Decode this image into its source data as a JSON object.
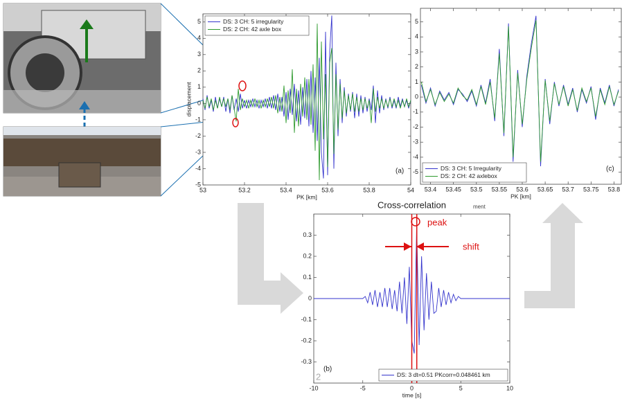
{
  "chart_data": [
    {
      "type": "line",
      "panel_label": "(a)",
      "xlabel": "PK [km]",
      "ylabel": "displacement",
      "legend": "upper left",
      "x": [
        53.0,
        53.01,
        53.02,
        53.03,
        53.04,
        53.05,
        53.06,
        53.07,
        53.08,
        53.09,
        53.1,
        53.11,
        53.12,
        53.13,
        53.14,
        53.15,
        53.16,
        53.17,
        53.18,
        53.19,
        53.2,
        53.21,
        53.22,
        53.23,
        53.24,
        53.25,
        53.26,
        53.27,
        53.28,
        53.29,
        53.3,
        53.31,
        53.32,
        53.33,
        53.34,
        53.35,
        53.36,
        53.37,
        53.38,
        53.39,
        53.4,
        53.41,
        53.42,
        53.43,
        53.44,
        53.45,
        53.46,
        53.47,
        53.48,
        53.49,
        53.5,
        53.51,
        53.52,
        53.53,
        53.54,
        53.55,
        53.56,
        53.57,
        53.58,
        53.59,
        53.6,
        53.61,
        53.62,
        53.63,
        53.64,
        53.65,
        53.66,
        53.67,
        53.68,
        53.69,
        53.7,
        53.71,
        53.72,
        53.73,
        53.74,
        53.75,
        53.76,
        53.77,
        53.78,
        53.79,
        53.8,
        53.81,
        53.82,
        53.83,
        53.84,
        53.85,
        53.86,
        53.87,
        53.88,
        53.89,
        53.9,
        53.91,
        53.92,
        53.93,
        53.94,
        53.95,
        53.96,
        53.97,
        53.98,
        53.99,
        54.0
      ],
      "xlim": [
        53,
        54
      ],
      "ylim": [
        -5,
        5.5
      ],
      "xticks": [
        53,
        53.2,
        53.4,
        53.6,
        53.8,
        54
      ],
      "yticks": [
        -5,
        -4,
        -3,
        -2,
        -1,
        0,
        1,
        2,
        3,
        4,
        5
      ],
      "series": [
        {
          "name": "DS: 3  CH: 5 irregularity",
          "color": "#3333cc",
          "values": [
            0.3,
            -0.4,
            0.5,
            -0.3,
            0.2,
            -0.5,
            0.4,
            -0.3,
            0.3,
            -0.2,
            0.4,
            -0.5,
            0.3,
            -0.6,
            0.5,
            -0.4,
            0.3,
            -0.5,
            0.6,
            -0.3,
            0.2,
            -0.3,
            0.2,
            -0.2,
            0.3,
            -0.2,
            0.2,
            -0.3,
            0.2,
            -0.2,
            0.3,
            -0.3,
            0.4,
            -0.3,
            0.5,
            -0.4,
            0.6,
            -0.5,
            0.4,
            -0.8,
            0.7,
            -1.0,
            0.9,
            -0.7,
            1.2,
            -1.1,
            0.8,
            -1.3,
            1.0,
            -0.9,
            1.5,
            -1.4,
            2.0,
            -1.8,
            1.6,
            -2.3,
            2.8,
            -3.0,
            -4.6,
            4.4,
            -4.4,
            3.2,
            5.4,
            -4.0,
            2.5,
            -2.0,
            1.5,
            -1.2,
            1.0,
            -0.8,
            0.6,
            -0.5,
            0.7,
            -0.9,
            0.6,
            -0.8,
            0.5,
            -0.6,
            0.4,
            -0.5,
            0.3,
            -0.4,
            1.1,
            -1.2,
            0.8,
            -0.6,
            0.5,
            -0.4,
            0.3,
            -0.3,
            0.4,
            -0.3,
            0.2,
            -0.3,
            0.4,
            -0.2,
            0.3,
            -0.2,
            0.2,
            -0.3,
            0.2
          ]
        },
        {
          "name": "DS: 2  CH: 42 axle box",
          "color": "#2e9a2e",
          "values": [
            0.2,
            -0.3,
            0.4,
            -0.2,
            0.3,
            -0.4,
            0.2,
            -0.3,
            0.4,
            -0.2,
            0.3,
            -0.2,
            0.3,
            -0.4,
            0.5,
            -0.3,
            -1.1,
            0.9,
            -0.4,
            0.3,
            -0.2,
            0.2,
            -0.3,
            0.2,
            -0.2,
            0.3,
            -0.2,
            0.2,
            -0.3,
            0.2,
            -0.2,
            0.3,
            -0.2,
            0.4,
            -0.3,
            0.5,
            -0.6,
            0.4,
            -0.5,
            1.1,
            -1.2,
            0.8,
            -0.6,
            2.1,
            -1.8,
            0.9,
            -1.4,
            1.2,
            -0.8,
            1.6,
            -1.0,
            1.5,
            -1.3,
            2.4,
            -2.9,
            4.9,
            -4.7,
            3.8,
            -2.2,
            1.8,
            -3.9,
            2.5,
            3.4,
            -3.1,
            1.8,
            -1.6,
            1.2,
            -0.9,
            0.8,
            -0.6,
            0.5,
            -0.4,
            0.6,
            -0.5,
            0.4,
            -0.5,
            0.3,
            -0.4,
            0.3,
            -0.3,
            0.2,
            -1.2,
            0.9,
            -0.5,
            0.4,
            -0.3,
            0.3,
            -0.3,
            0.2,
            -0.2,
            0.3,
            -0.2,
            0.3,
            -0.2,
            0.2,
            -0.3,
            0.2,
            -0.2,
            0.3,
            -0.2,
            0.2
          ]
        }
      ]
    },
    {
      "type": "line",
      "panel_label": "(c)",
      "xlabel": "PK [km]",
      "note": "ment",
      "legend": "lower left",
      "x": [
        53.38,
        53.39,
        53.4,
        53.41,
        53.42,
        53.43,
        53.44,
        53.45,
        53.46,
        53.47,
        53.48,
        53.49,
        53.5,
        53.51,
        53.52,
        53.53,
        53.54,
        53.55,
        53.56,
        53.57,
        53.58,
        53.59,
        53.6,
        53.61,
        53.62,
        53.63,
        53.64,
        53.65,
        53.66,
        53.67,
        53.68,
        53.69,
        53.7,
        53.71,
        53.72,
        53.73,
        53.74,
        53.75,
        53.76,
        53.77,
        53.78,
        53.79,
        53.8,
        53.81
      ],
      "xlim": [
        53.378,
        53.816
      ],
      "ylim": [
        -5.8,
        5.9
      ],
      "xticks": [
        53.4,
        53.45,
        53.5,
        53.55,
        53.6,
        53.65,
        53.7,
        53.75,
        53.8
      ],
      "yticks": [
        -5,
        -4,
        -3,
        -2,
        -1,
        0,
        1,
        2,
        3,
        4,
        5
      ],
      "series": [
        {
          "name": "DS: 3  CH: 5 Irregularity",
          "color": "#3333cc",
          "values": [
            0.8,
            -0.4,
            0.6,
            -0.6,
            0.4,
            -0.2,
            0.3,
            -0.5,
            0.5,
            0.2,
            -0.3,
            0.4,
            -0.6,
            0.8,
            -0.4,
            1.2,
            -1.6,
            3.2,
            -2.6,
            4.9,
            -4.3,
            1.8,
            -2.0,
            1.4,
            3.6,
            5.4,
            -4.6,
            1.2,
            -1.8,
            1.0,
            -0.6,
            0.8,
            -0.5,
            0.6,
            -1.0,
            0.5,
            -0.4,
            0.7,
            -1.5,
            0.6,
            -0.4,
            0.8,
            -0.6,
            0.5
          ]
        },
        {
          "name": "DS: 2  CH: 42 axlebox",
          "color": "#2e9a2e",
          "values": [
            1.0,
            -0.3,
            0.5,
            -0.5,
            0.3,
            -0.3,
            0.2,
            -0.4,
            0.6,
            0.1,
            -0.2,
            0.5,
            -0.5,
            0.7,
            -0.5,
            1.0,
            -1.4,
            2.9,
            -2.4,
            4.7,
            -4.0,
            1.6,
            -1.8,
            1.2,
            3.3,
            5.1,
            -4.3,
            1.1,
            -1.6,
            0.9,
            -0.5,
            0.7,
            -0.6,
            0.5,
            -0.9,
            0.6,
            -0.3,
            0.6,
            -1.3,
            0.5,
            -0.5,
            0.7,
            -0.5,
            0.4
          ]
        }
      ]
    },
    {
      "type": "line",
      "title": "Cross-correlation",
      "panel_label": "(b)",
      "xlabel": "time [s]",
      "legend": "lower right",
      "corner_mark": "2",
      "annotations": [
        "peak",
        "shift"
      ],
      "vlines": [
        0,
        0.51
      ],
      "vline_color": "#dd1111",
      "x": [
        -10,
        -5,
        -4.75,
        -4.5,
        -4.25,
        -4,
        -3.75,
        -3.5,
        -3.25,
        -3,
        -2.75,
        -2.5,
        -2.25,
        -2,
        -1.75,
        -1.5,
        -1.25,
        -1,
        -0.75,
        -0.5,
        -0.25,
        0,
        0.25,
        0.5,
        0.75,
        1,
        1.25,
        1.5,
        1.75,
        2,
        2.25,
        2.5,
        2.75,
        3,
        3.25,
        3.5,
        3.75,
        4,
        4.25,
        4.5,
        4.75,
        5,
        10
      ],
      "xlim": [
        -10,
        10
      ],
      "ylim": [
        -0.4,
        0.4
      ],
      "xticks": [
        -10,
        -5,
        0,
        5,
        10
      ],
      "yticks": [
        -0.3,
        -0.2,
        -0.1,
        0,
        0.1,
        0.2,
        0.3
      ],
      "series": [
        {
          "name": "DS: 3  dt=0.51  PKcorr=0.048461 km",
          "color": "#3333cc",
          "values": [
            0,
            0,
            0.01,
            -0.02,
            0.03,
            -0.03,
            0.04,
            -0.04,
            0.03,
            -0.04,
            0.05,
            -0.04,
            0.05,
            -0.05,
            0.04,
            -0.06,
            0.08,
            -0.07,
            0.1,
            -0.12,
            0.15,
            -0.2,
            -0.26,
            0.35,
            -0.22,
            0.2,
            -0.15,
            0.12,
            -0.1,
            0.08,
            -0.07,
            -0.06,
            0.05,
            -0.04,
            0.04,
            -0.03,
            0.03,
            -0.02,
            0.02,
            -0.01,
            0.01,
            0,
            0
          ]
        }
      ]
    }
  ]
}
